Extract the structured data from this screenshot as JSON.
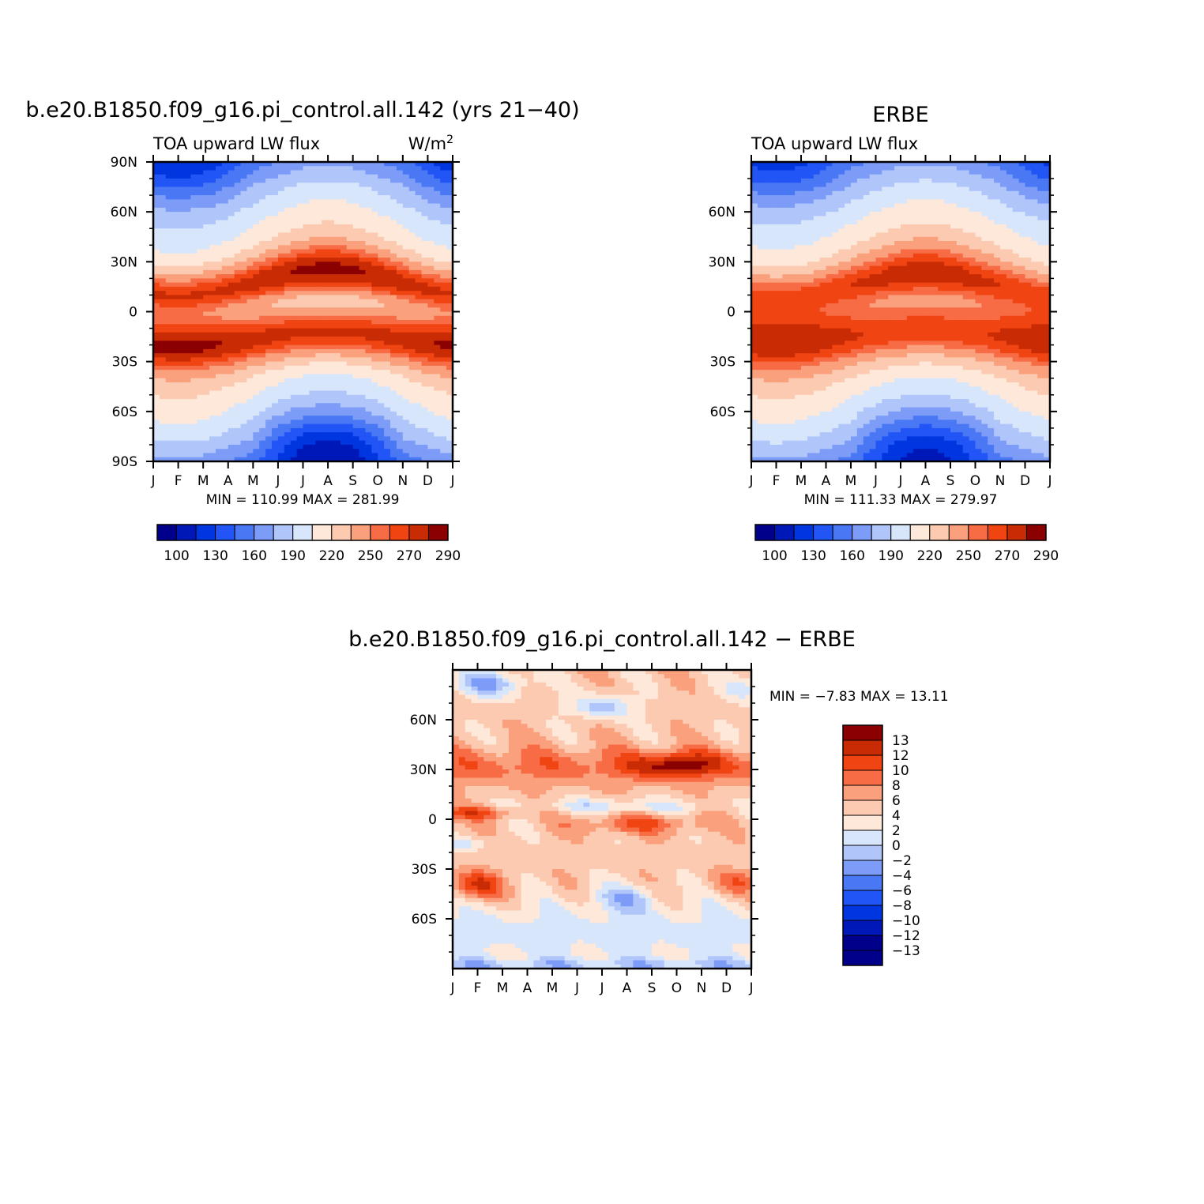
{
  "chart_data": [
    {
      "type": "heatmap",
      "title": "b.e20.B1850.f09_g16.pi_control.all.142 (yrs 21−40)",
      "left_string": "TOA upward LW flux",
      "right_string": "W/m",
      "right_string_sup": "2",
      "x_tick_labels": [
        "J",
        "F",
        "M",
        "A",
        "M",
        "J",
        "J",
        "A",
        "S",
        "O",
        "N",
        "D",
        "J"
      ],
      "y_tick_labels": [
        "90N",
        "60N",
        "30N",
        "0",
        "30S",
        "60S",
        "90S"
      ],
      "ylim": [
        -90,
        90
      ],
      "stats": "MIN =  110.99  MAX =  281.99",
      "min": 110.99,
      "max": 281.99,
      "colorbar_labels": [
        "100",
        "130",
        "160",
        "190",
        "220",
        "250",
        "270",
        "290"
      ],
      "colorbar_orientation": "horizontal",
      "value_field": "model",
      "levels": [
        100,
        115,
        130,
        145,
        160,
        175,
        190,
        205,
        220,
        235,
        250,
        260,
        270,
        280,
        290
      ]
    },
    {
      "type": "heatmap",
      "title": "ERBE",
      "left_string": "TOA upward LW flux",
      "right_string": "",
      "x_tick_labels": [
        "J",
        "F",
        "M",
        "A",
        "M",
        "J",
        "J",
        "A",
        "S",
        "O",
        "N",
        "D",
        "J"
      ],
      "y_tick_labels": [
        "60N",
        "30N",
        "0",
        "30S",
        "60S"
      ],
      "ylim": [
        -90,
        90
      ],
      "stats": "MIN =  111.33  MAX =  279.97",
      "min": 111.33,
      "max": 279.97,
      "colorbar_labels": [
        "100",
        "130",
        "160",
        "190",
        "220",
        "250",
        "270",
        "290"
      ],
      "colorbar_orientation": "horizontal",
      "value_field": "obs",
      "levels": [
        100,
        115,
        130,
        145,
        160,
        175,
        190,
        205,
        220,
        235,
        250,
        260,
        270,
        280,
        290
      ]
    },
    {
      "type": "heatmap",
      "title": "b.e20.B1850.f09_g16.pi_control.all.142 − ERBE",
      "x_tick_labels": [
        "J",
        "F",
        "M",
        "A",
        "M",
        "J",
        "J",
        "A",
        "S",
        "O",
        "N",
        "D",
        "J"
      ],
      "y_tick_labels": [
        "60N",
        "30N",
        "0",
        "30S",
        "60S"
      ],
      "ylim": [
        -90,
        90
      ],
      "stats": "MIN =   −7.83  MAX =   13.11",
      "min": -7.83,
      "max": 13.11,
      "colorbar_labels": [
        "13",
        "12",
        "10",
        "8",
        "6",
        "4",
        "2",
        "0",
        "−2",
        "−4",
        "−6",
        "−8",
        "−10",
        "−12",
        "−13"
      ],
      "colorbar_orientation": "vertical",
      "value_field": "diff",
      "levels": [
        -13,
        -12,
        -10,
        -8,
        -6,
        -4,
        -2,
        0,
        2,
        4,
        6,
        8,
        10,
        12,
        13
      ]
    }
  ],
  "colors": {
    "palette_blue_to_red": [
      "#00008b",
      "#0018b8",
      "#0036e0",
      "#2255f5",
      "#4a78f5",
      "#7d9cf8",
      "#b0c6fb",
      "#d8e6fc",
      "#fde8da",
      "#fccab0",
      "#faa07d",
      "#f76b45",
      "#f04413",
      "#c92c05",
      "#8b0000"
    ]
  }
}
